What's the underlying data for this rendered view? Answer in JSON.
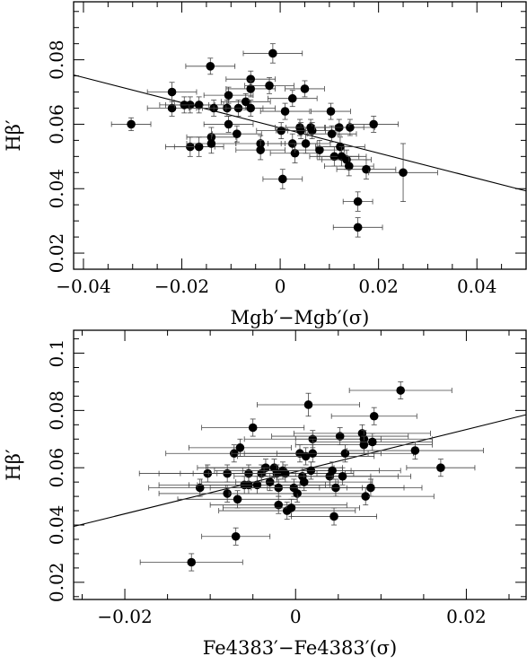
{
  "chart_data": [
    {
      "type": "scatter",
      "xlabel": "Mgb′−Mgb′(σ)",
      "ylabel": "Hβ′",
      "xlim": [
        -0.042,
        0.05
      ],
      "ylim": [
        0.015,
        0.098
      ],
      "xticks": [
        -0.04,
        -0.02,
        0,
        0.02,
        0.04
      ],
      "xtick_labels": [
        "−0.04",
        "−0.02",
        "0",
        "0.02",
        "0.04"
      ],
      "yticks": [
        0.02,
        0.04,
        0.06,
        0.08
      ],
      "ytick_labels": [
        "0.02",
        "0.04",
        "0.06",
        "0.08"
      ],
      "fit_line": {
        "x": [
          -0.042,
          0.05
        ],
        "y": [
          0.0753,
          0.0393
        ]
      },
      "points": [
        {
          "x": -0.0303,
          "y": 0.06,
          "xerr": 0.004,
          "yerr": 0.002
        },
        {
          "x": -0.022,
          "y": 0.07,
          "xerr": 0.005,
          "yerr": 0.003
        },
        {
          "x": -0.022,
          "y": 0.065,
          "xerr": 0.005,
          "yerr": 0.0025
        },
        {
          "x": -0.0195,
          "y": 0.066,
          "xerr": 0.005,
          "yerr": 0.0025
        },
        {
          "x": -0.0183,
          "y": 0.066,
          "xerr": 0.005,
          "yerr": 0.0025
        },
        {
          "x": -0.0183,
          "y": 0.053,
          "xerr": 0.005,
          "yerr": 0.003
        },
        {
          "x": -0.0165,
          "y": 0.066,
          "xerr": 0.005,
          "yerr": 0.0025
        },
        {
          "x": -0.0165,
          "y": 0.053,
          "xerr": 0.005,
          "yerr": 0.003
        },
        {
          "x": -0.0142,
          "y": 0.078,
          "xerr": 0.005,
          "yerr": 0.0025
        },
        {
          "x": -0.014,
          "y": 0.056,
          "xerr": 0.005,
          "yerr": 0.003
        },
        {
          "x": -0.014,
          "y": 0.054,
          "xerr": 0.005,
          "yerr": 0.003
        },
        {
          "x": -0.0135,
          "y": 0.065,
          "xerr": 0.005,
          "yerr": 0.0025
        },
        {
          "x": -0.0108,
          "y": 0.065,
          "xerr": 0.005,
          "yerr": 0.0025
        },
        {
          "x": -0.0105,
          "y": 0.069,
          "xerr": 0.005,
          "yerr": 0.0025
        },
        {
          "x": -0.0105,
          "y": 0.06,
          "xerr": 0.005,
          "yerr": 0.0025
        },
        {
          "x": -0.0088,
          "y": 0.057,
          "xerr": 0.005,
          "yerr": 0.0025
        },
        {
          "x": -0.0085,
          "y": 0.065,
          "xerr": 0.005,
          "yerr": 0.0025
        },
        {
          "x": -0.007,
          "y": 0.067,
          "xerr": 0.005,
          "yerr": 0.0025
        },
        {
          "x": -0.006,
          "y": 0.074,
          "xerr": 0.005,
          "yerr": 0.0025
        },
        {
          "x": -0.006,
          "y": 0.071,
          "xerr": 0.005,
          "yerr": 0.0025
        },
        {
          "x": -0.006,
          "y": 0.065,
          "xerr": 0.005,
          "yerr": 0.0025
        },
        {
          "x": -0.004,
          "y": 0.054,
          "xerr": 0.005,
          "yerr": 0.0025
        },
        {
          "x": -0.004,
          "y": 0.052,
          "xerr": 0.005,
          "yerr": 0.003
        },
        {
          "x": -0.0022,
          "y": 0.072,
          "xerr": 0.005,
          "yerr": 0.0025
        },
        {
          "x": -0.0015,
          "y": 0.082,
          "xerr": 0.006,
          "yerr": 0.003
        },
        {
          "x": 0.0002,
          "y": 0.058,
          "xerr": 0.005,
          "yerr": 0.0025
        },
        {
          "x": 0.0005,
          "y": 0.043,
          "xerr": 0.004,
          "yerr": 0.003
        },
        {
          "x": 0.001,
          "y": 0.064,
          "xerr": 0.005,
          "yerr": 0.0025
        },
        {
          "x": 0.0025,
          "y": 0.068,
          "xerr": 0.005,
          "yerr": 0.0025
        },
        {
          "x": 0.0025,
          "y": 0.054,
          "xerr": 0.005,
          "yerr": 0.003
        },
        {
          "x": 0.003,
          "y": 0.051,
          "xerr": 0.005,
          "yerr": 0.003
        },
        {
          "x": 0.004,
          "y": 0.059,
          "xerr": 0.005,
          "yerr": 0.0025
        },
        {
          "x": 0.0042,
          "y": 0.058,
          "xerr": 0.005,
          "yerr": 0.0025
        },
        {
          "x": 0.005,
          "y": 0.071,
          "xerr": 0.004,
          "yerr": 0.0025
        },
        {
          "x": 0.0052,
          "y": 0.054,
          "xerr": 0.005,
          "yerr": 0.003
        },
        {
          "x": 0.0062,
          "y": 0.059,
          "xerr": 0.005,
          "yerr": 0.0025
        },
        {
          "x": 0.0065,
          "y": 0.058,
          "xerr": 0.005,
          "yerr": 0.0025
        },
        {
          "x": 0.008,
          "y": 0.052,
          "xerr": 0.005,
          "yerr": 0.003
        },
        {
          "x": 0.0103,
          "y": 0.064,
          "xerr": 0.004,
          "yerr": 0.0025
        },
        {
          "x": 0.0105,
          "y": 0.057,
          "xerr": 0.005,
          "yerr": 0.0025
        },
        {
          "x": 0.011,
          "y": 0.05,
          "xerr": 0.005,
          "yerr": 0.003
        },
        {
          "x": 0.012,
          "y": 0.059,
          "xerr": 0.005,
          "yerr": 0.0025
        },
        {
          "x": 0.0122,
          "y": 0.053,
          "xerr": 0.005,
          "yerr": 0.003
        },
        {
          "x": 0.0125,
          "y": 0.05,
          "xerr": 0.005,
          "yerr": 0.003
        },
        {
          "x": 0.0135,
          "y": 0.049,
          "xerr": 0.005,
          "yerr": 0.003
        },
        {
          "x": 0.014,
          "y": 0.047,
          "xerr": 0.005,
          "yerr": 0.003
        },
        {
          "x": 0.0142,
          "y": 0.059,
          "xerr": 0.005,
          "yerr": 0.0025
        },
        {
          "x": 0.0158,
          "y": 0.036,
          "xerr": 0.003,
          "yerr": 0.003
        },
        {
          "x": 0.0158,
          "y": 0.028,
          "xerr": 0.005,
          "yerr": 0.003
        },
        {
          "x": 0.0175,
          "y": 0.046,
          "xerr": 0.006,
          "yerr": 0.003
        },
        {
          "x": 0.019,
          "y": 0.06,
          "xerr": 0.005,
          "yerr": 0.0025
        },
        {
          "x": 0.025,
          "y": 0.045,
          "xerr": 0.007,
          "yerr": 0.009
        }
      ]
    },
    {
      "type": "scatter",
      "xlabel": "Fe4383′−Fe4383′(σ)",
      "ylabel": "Hβ′",
      "xlim": [
        -0.026,
        0.027
      ],
      "ylim": [
        0.014,
        0.108
      ],
      "xticks": [
        -0.02,
        0,
        0.02
      ],
      "xtick_labels": [
        "−0.02",
        "0",
        "0.02"
      ],
      "yticks": [
        0.02,
        0.04,
        0.06,
        0.08,
        0.1
      ],
      "ytick_labels": [
        "0.02",
        "0.04",
        "0.06",
        "0.08",
        "0.1"
      ],
      "fit_line": {
        "x": [
          -0.026,
          0.027
        ],
        "y": [
          0.0395,
          0.0785
        ]
      },
      "points": [
        {
          "x": -0.0122,
          "y": 0.027,
          "xerr": 0.006,
          "yerr": 0.003
        },
        {
          "x": -0.0112,
          "y": 0.053,
          "xerr": 0.006,
          "yerr": 0.003
        },
        {
          "x": -0.0103,
          "y": 0.058,
          "xerr": 0.008,
          "yerr": 0.003
        },
        {
          "x": -0.008,
          "y": 0.051,
          "xerr": 0.008,
          "yerr": 0.003
        },
        {
          "x": -0.008,
          "y": 0.058,
          "xerr": 0.008,
          "yerr": 0.003
        },
        {
          "x": -0.0072,
          "y": 0.065,
          "xerr": 0.008,
          "yerr": 0.003
        },
        {
          "x": -0.007,
          "y": 0.036,
          "xerr": 0.004,
          "yerr": 0.003
        },
        {
          "x": -0.0068,
          "y": 0.049,
          "xerr": 0.007,
          "yerr": 0.003
        },
        {
          "x": -0.0065,
          "y": 0.067,
          "xerr": 0.006,
          "yerr": 0.003
        },
        {
          "x": -0.006,
          "y": 0.054,
          "xerr": 0.01,
          "yerr": 0.003
        },
        {
          "x": -0.0055,
          "y": 0.054,
          "xerr": 0.006,
          "yerr": 0.003
        },
        {
          "x": -0.0055,
          "y": 0.058,
          "xerr": 0.008,
          "yerr": 0.003
        },
        {
          "x": -0.005,
          "y": 0.074,
          "xerr": 0.006,
          "yerr": 0.003
        },
        {
          "x": -0.0045,
          "y": 0.054,
          "xerr": 0.008,
          "yerr": 0.003
        },
        {
          "x": -0.004,
          "y": 0.058,
          "xerr": 0.008,
          "yerr": 0.003
        },
        {
          "x": -0.0035,
          "y": 0.06,
          "xerr": 0.008,
          "yerr": 0.003
        },
        {
          "x": -0.003,
          "y": 0.055,
          "xerr": 0.008,
          "yerr": 0.003
        },
        {
          "x": -0.0025,
          "y": 0.06,
          "xerr": 0.008,
          "yerr": 0.003
        },
        {
          "x": -0.0022,
          "y": 0.058,
          "xerr": 0.008,
          "yerr": 0.003
        },
        {
          "x": -0.002,
          "y": 0.047,
          "xerr": 0.008,
          "yerr": 0.003
        },
        {
          "x": -0.002,
          "y": 0.053,
          "xerr": 0.008,
          "yerr": 0.003
        },
        {
          "x": -0.0015,
          "y": 0.059,
          "xerr": 0.008,
          "yerr": 0.003
        },
        {
          "x": -0.0012,
          "y": 0.058,
          "xerr": 0.008,
          "yerr": 0.003
        },
        {
          "x": -0.001,
          "y": 0.045,
          "xerr": 0.008,
          "yerr": 0.003
        },
        {
          "x": -0.0005,
          "y": 0.046,
          "xerr": 0.008,
          "yerr": 0.003
        },
        {
          "x": -0.0002,
          "y": 0.053,
          "xerr": 0.008,
          "yerr": 0.003
        },
        {
          "x": 0.0002,
          "y": 0.051,
          "xerr": 0.008,
          "yerr": 0.003
        },
        {
          "x": 0.0005,
          "y": 0.065,
          "xerr": 0.008,
          "yerr": 0.003
        },
        {
          "x": 0.0008,
          "y": 0.057,
          "xerr": 0.008,
          "yerr": 0.003
        },
        {
          "x": 0.001,
          "y": 0.055,
          "xerr": 0.008,
          "yerr": 0.003
        },
        {
          "x": 0.0012,
          "y": 0.064,
          "xerr": 0.008,
          "yerr": 0.003
        },
        {
          "x": 0.0015,
          "y": 0.082,
          "xerr": 0.006,
          "yerr": 0.004
        },
        {
          "x": 0.0018,
          "y": 0.059,
          "xerr": 0.008,
          "yerr": 0.003
        },
        {
          "x": 0.002,
          "y": 0.07,
          "xerr": 0.008,
          "yerr": 0.003
        },
        {
          "x": 0.002,
          "y": 0.065,
          "xerr": 0.008,
          "yerr": 0.003
        },
        {
          "x": 0.004,
          "y": 0.057,
          "xerr": 0.008,
          "yerr": 0.003
        },
        {
          "x": 0.0043,
          "y": 0.059,
          "xerr": 0.008,
          "yerr": 0.003
        },
        {
          "x": 0.0045,
          "y": 0.043,
          "xerr": 0.005,
          "yerr": 0.003
        },
        {
          "x": 0.0047,
          "y": 0.053,
          "xerr": 0.008,
          "yerr": 0.003
        },
        {
          "x": 0.0052,
          "y": 0.071,
          "xerr": 0.008,
          "yerr": 0.003
        },
        {
          "x": 0.0055,
          "y": 0.057,
          "xerr": 0.008,
          "yerr": 0.003
        },
        {
          "x": 0.0058,
          "y": 0.065,
          "xerr": 0.008,
          "yerr": 0.003
        },
        {
          "x": 0.0078,
          "y": 0.072,
          "xerr": 0.008,
          "yerr": 0.003
        },
        {
          "x": 0.008,
          "y": 0.07,
          "xerr": 0.008,
          "yerr": 0.003
        },
        {
          "x": 0.008,
          "y": 0.068,
          "xerr": 0.008,
          "yerr": 0.003
        },
        {
          "x": 0.0082,
          "y": 0.05,
          "xerr": 0.008,
          "yerr": 0.003
        },
        {
          "x": 0.0088,
          "y": 0.053,
          "xerr": 0.006,
          "yerr": 0.003
        },
        {
          "x": 0.009,
          "y": 0.069,
          "xerr": 0.007,
          "yerr": 0.003
        },
        {
          "x": 0.0092,
          "y": 0.078,
          "xerr": 0.005,
          "yerr": 0.003
        },
        {
          "x": 0.0123,
          "y": 0.087,
          "xerr": 0.006,
          "yerr": 0.003
        },
        {
          "x": 0.014,
          "y": 0.066,
          "xerr": 0.008,
          "yerr": 0.003
        },
        {
          "x": 0.017,
          "y": 0.06,
          "xerr": 0.004,
          "yerr": 0.003
        }
      ]
    }
  ]
}
